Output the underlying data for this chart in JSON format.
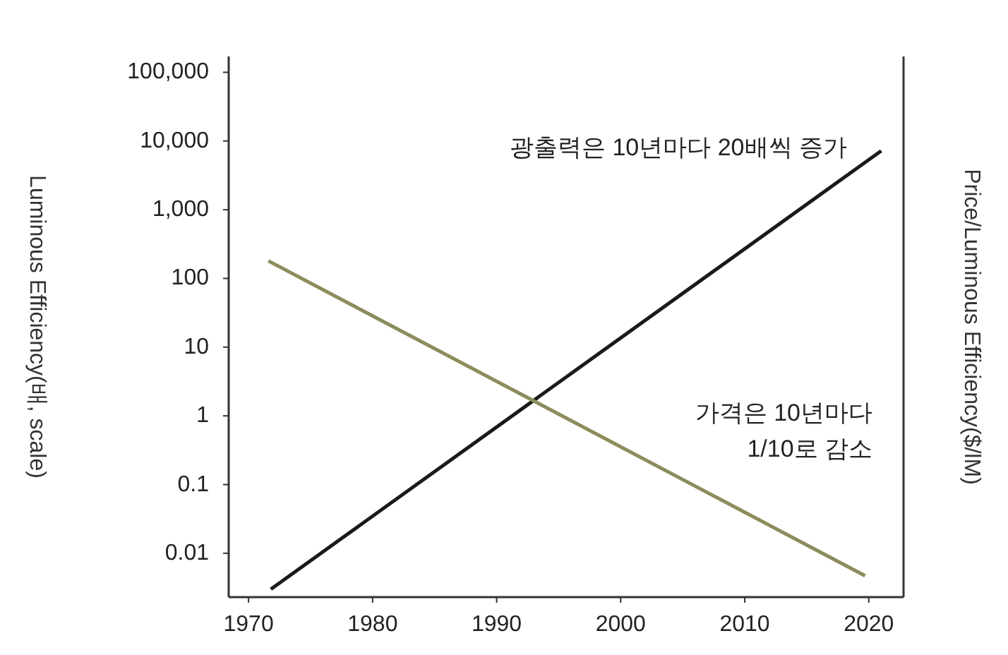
{
  "chart_data": {
    "type": "line",
    "ylabel": "Luminous Efficiency(배, scale)",
    "y2label": "Price/Luminous Efficiency($/lM)",
    "log": "y",
    "xlim": [
      1968.4,
      2022.8
    ],
    "xticks": [
      1970,
      1980,
      1990,
      2000,
      2010,
      2020
    ],
    "ylim": [
      0.0023,
      170000
    ],
    "yticks": [
      {
        "value": 100000,
        "label": "100,000"
      },
      {
        "value": 10000,
        "label": "10,000"
      },
      {
        "value": 1000,
        "label": "1,000"
      },
      100,
      10,
      1,
      0.1,
      0.01
    ],
    "grid": false,
    "series": [
      {
        "color": "#1a1a1a",
        "x": [
          1971.8,
          2021
        ],
        "values": [
          0.003,
          7200
        ]
      },
      {
        "color": "#8c8c5c",
        "x": [
          1971.6,
          2019.7
        ],
        "values": [
          180,
          0.0047
        ]
      }
    ],
    "annotations": [
      "광출력은 10년마다 20배씩 증가",
      "가격은 10년마다\n1/10로 감소"
    ]
  }
}
